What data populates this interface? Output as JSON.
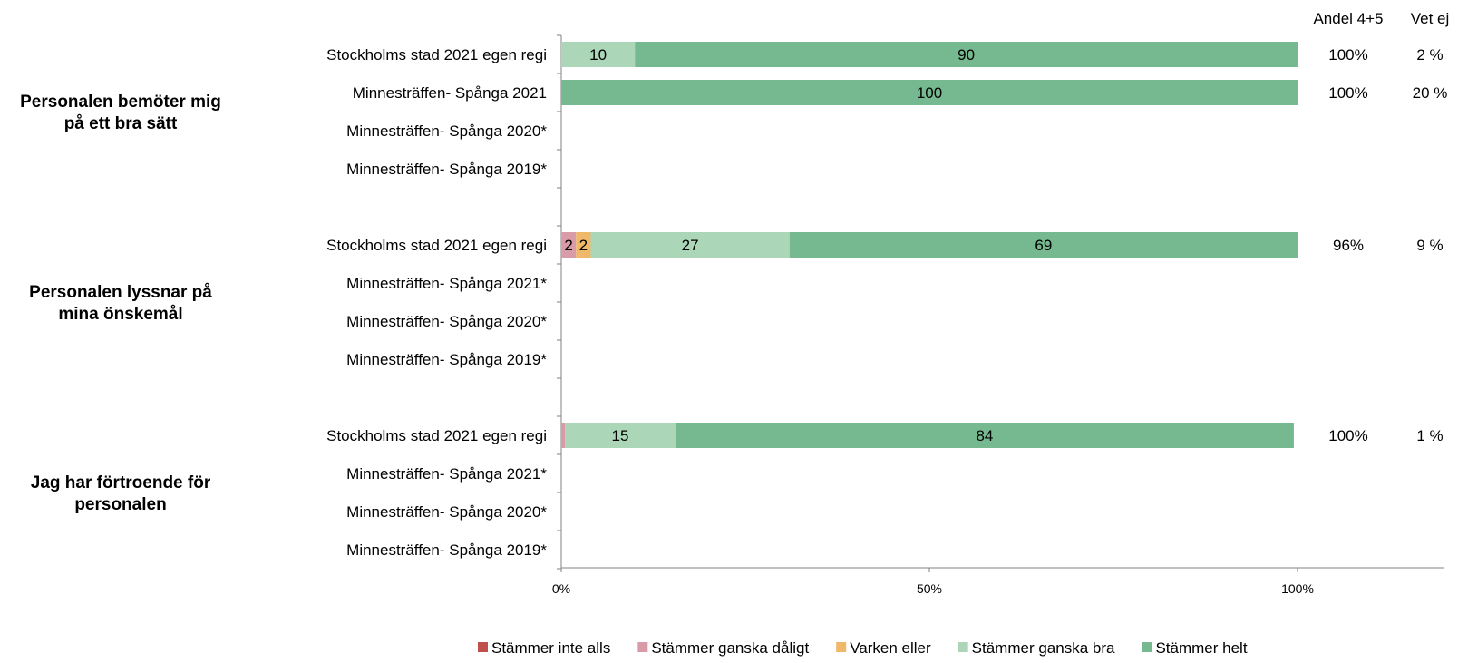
{
  "chart_data": {
    "type": "bar",
    "orientation": "horizontal",
    "stacked": true,
    "percent": true,
    "xlim": [
      0,
      100
    ],
    "x_ticks": [
      "0%",
      "50%",
      "100%"
    ],
    "series": [
      {
        "name": "Stämmer inte alls",
        "color": "#c0504d"
      },
      {
        "name": "Stämmer ganska dåligt",
        "color": "#d99ba8"
      },
      {
        "name": "Varken eller",
        "color": "#f0b86a"
      },
      {
        "name": "Stämmer ganska bra",
        "color": "#acd6b8"
      },
      {
        "name": "Stämmer helt",
        "color": "#76b88f"
      }
    ],
    "column_headers": [
      "Andel 4+5",
      "Vet ej"
    ],
    "groups": [
      {
        "title_lines": [
          "Personalen bemöter mig",
          "på ett bra sätt"
        ],
        "rows": [
          {
            "label": "Stockholms stad 2021 egen regi",
            "values": [
              0,
              0,
              0,
              10,
              90
            ],
            "andel": "100%",
            "vetej": "2 %"
          },
          {
            "label": "Minnesträffen- Spånga 2021",
            "values": [
              0,
              0,
              0,
              0,
              100
            ],
            "andel": "100%",
            "vetej": "20 %"
          },
          {
            "label": "Minnesträffen- Spånga 2020*",
            "values": null,
            "andel": "",
            "vetej": ""
          },
          {
            "label": "Minnesträffen- Spånga 2019*",
            "values": null,
            "andel": "",
            "vetej": ""
          }
        ]
      },
      {
        "title_lines": [
          "Personalen lyssnar på",
          "mina önskemål"
        ],
        "rows": [
          {
            "label": "Stockholms stad 2021 egen regi",
            "values": [
              0,
              2,
              2,
              27,
              69
            ],
            "andel": "96%",
            "vetej": "9 %"
          },
          {
            "label": "Minnesträffen- Spånga 2021*",
            "values": null,
            "andel": "",
            "vetej": ""
          },
          {
            "label": "Minnesträffen- Spånga 2020*",
            "values": null,
            "andel": "",
            "vetej": ""
          },
          {
            "label": "Minnesträffen- Spånga 2019*",
            "values": null,
            "andel": "",
            "vetej": ""
          }
        ]
      },
      {
        "title_lines": [
          "Jag har förtroende för",
          "personalen"
        ],
        "rows": [
          {
            "label": "Stockholms stad 2021 egen regi",
            "values": [
              0,
              0.5,
              0,
              15,
              84
            ],
            "andel": "100%",
            "vetej": "1 %"
          },
          {
            "label": "Minnesträffen- Spånga 2021*",
            "values": null,
            "andel": "",
            "vetej": ""
          },
          {
            "label": "Minnesträffen- Spånga 2020*",
            "values": null,
            "andel": "",
            "vetej": ""
          },
          {
            "label": "Minnesträffen- Spånga 2019*",
            "values": null,
            "andel": "",
            "vetej": ""
          }
        ]
      }
    ]
  }
}
